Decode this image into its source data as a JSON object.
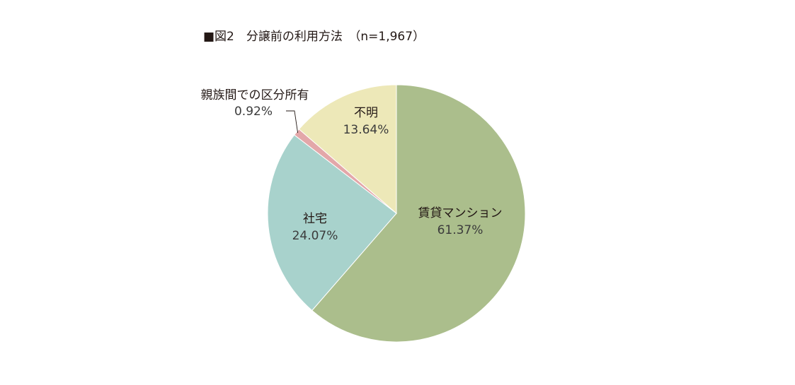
{
  "chart_data": {
    "type": "pie",
    "title": "■図2　分譲前の利用方法　（n=1,967）",
    "start_angle_deg": 0,
    "direction": "clockwise",
    "slices": [
      {
        "label": "賃貸マンション",
        "value": 61.37,
        "value_label": "61.37%",
        "color": "#abbe8c"
      },
      {
        "label": "社宅",
        "value": 24.07,
        "value_label": "24.07%",
        "color": "#a8d2cc"
      },
      {
        "label": "親族間での区分所有",
        "value": 0.92,
        "value_label": "0.92%",
        "color": "#e3a7a9"
      },
      {
        "label": "不明",
        "value": 13.64,
        "value_label": "13.64%",
        "color": "#ede8b8"
      }
    ]
  }
}
